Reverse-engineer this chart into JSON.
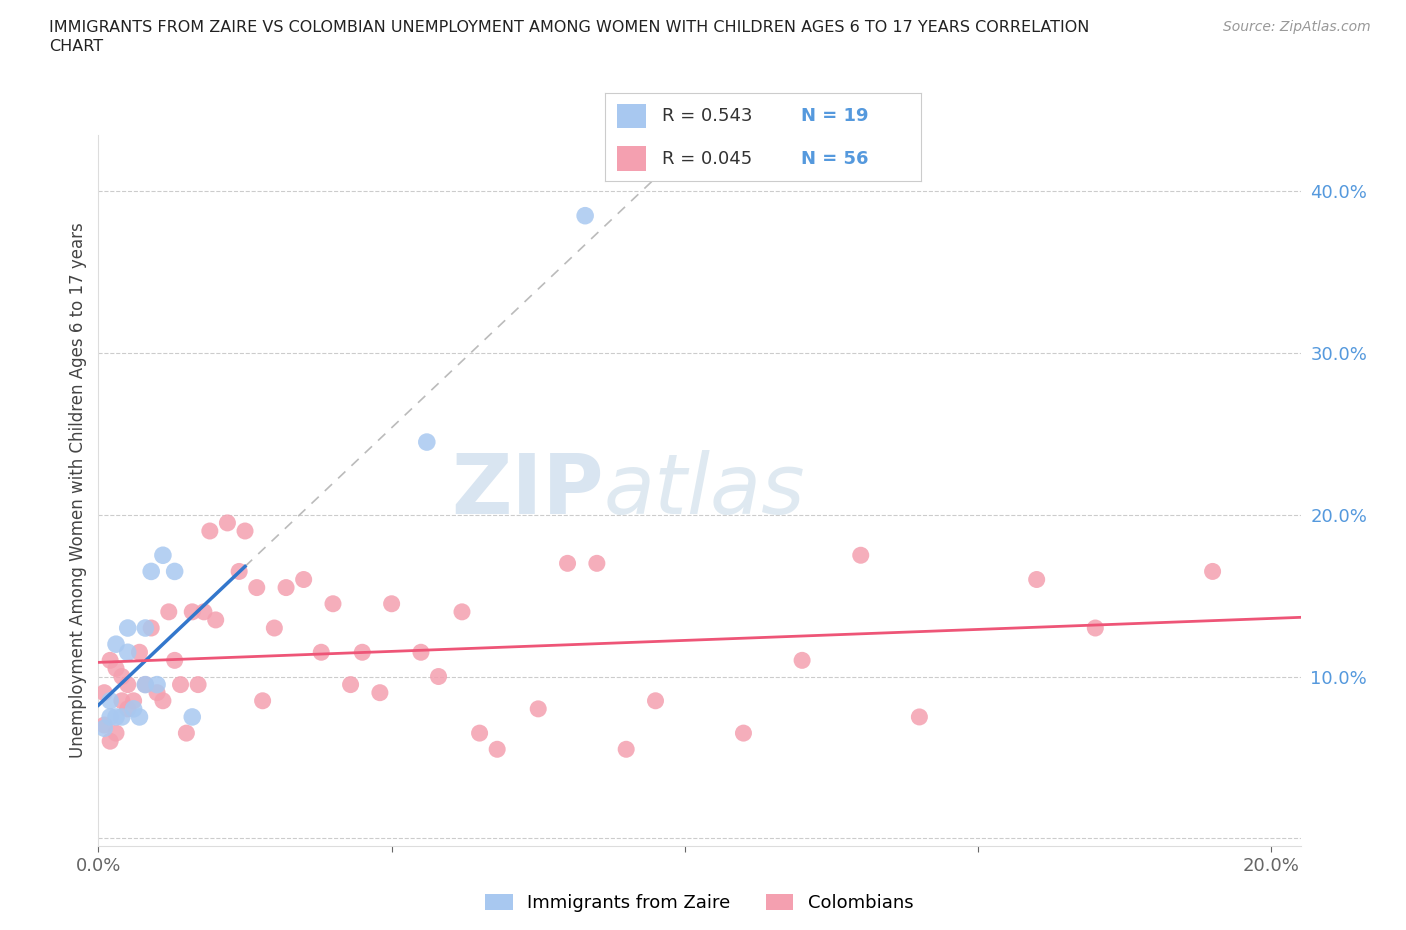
{
  "title_line1": "IMMIGRANTS FROM ZAIRE VS COLOMBIAN UNEMPLOYMENT AMONG WOMEN WITH CHILDREN AGES 6 TO 17 YEARS CORRELATION",
  "title_line2": "CHART",
  "source_text": "Source: ZipAtlas.com",
  "ylabel": "Unemployment Among Women with Children Ages 6 to 17 years",
  "xlim": [
    0.0,
    0.205
  ],
  "ylim": [
    -0.005,
    0.435
  ],
  "zaire_R": 0.543,
  "zaire_N": 19,
  "colombian_R": 0.045,
  "colombian_N": 56,
  "zaire_color": "#a8c8f0",
  "colombian_color": "#f4a0b0",
  "zaire_line_color": "#3377cc",
  "colombian_line_color": "#ee5577",
  "watermark_zip": "ZIP",
  "watermark_atlas": "atlas",
  "zaire_x": [
    0.001,
    0.002,
    0.002,
    0.003,
    0.003,
    0.004,
    0.005,
    0.005,
    0.006,
    0.007,
    0.008,
    0.008,
    0.009,
    0.01,
    0.011,
    0.013,
    0.016,
    0.056,
    0.083
  ],
  "zaire_y": [
    0.068,
    0.085,
    0.075,
    0.12,
    0.075,
    0.075,
    0.115,
    0.13,
    0.08,
    0.075,
    0.095,
    0.13,
    0.165,
    0.095,
    0.175,
    0.165,
    0.075,
    0.245,
    0.385
  ],
  "colombian_x": [
    0.001,
    0.001,
    0.002,
    0.002,
    0.003,
    0.003,
    0.004,
    0.004,
    0.005,
    0.005,
    0.006,
    0.007,
    0.008,
    0.009,
    0.01,
    0.011,
    0.012,
    0.013,
    0.014,
    0.015,
    0.016,
    0.017,
    0.018,
    0.019,
    0.02,
    0.022,
    0.024,
    0.025,
    0.027,
    0.028,
    0.03,
    0.032,
    0.035,
    0.038,
    0.04,
    0.043,
    0.045,
    0.048,
    0.05,
    0.055,
    0.058,
    0.062,
    0.065,
    0.068,
    0.075,
    0.08,
    0.085,
    0.09,
    0.095,
    0.11,
    0.12,
    0.13,
    0.14,
    0.16,
    0.17,
    0.19
  ],
  "colombian_y": [
    0.09,
    0.07,
    0.11,
    0.06,
    0.105,
    0.065,
    0.085,
    0.1,
    0.095,
    0.08,
    0.085,
    0.115,
    0.095,
    0.13,
    0.09,
    0.085,
    0.14,
    0.11,
    0.095,
    0.065,
    0.14,
    0.095,
    0.14,
    0.19,
    0.135,
    0.195,
    0.165,
    0.19,
    0.155,
    0.085,
    0.13,
    0.155,
    0.16,
    0.115,
    0.145,
    0.095,
    0.115,
    0.09,
    0.145,
    0.115,
    0.1,
    0.14,
    0.065,
    0.055,
    0.08,
    0.17,
    0.17,
    0.055,
    0.085,
    0.065,
    0.11,
    0.175,
    0.075,
    0.16,
    0.13,
    0.165
  ],
  "legend_R_color": "#333333",
  "legend_N_color": "#5599dd",
  "ytick_color": "#5599dd",
  "xtick_color": "#333333"
}
